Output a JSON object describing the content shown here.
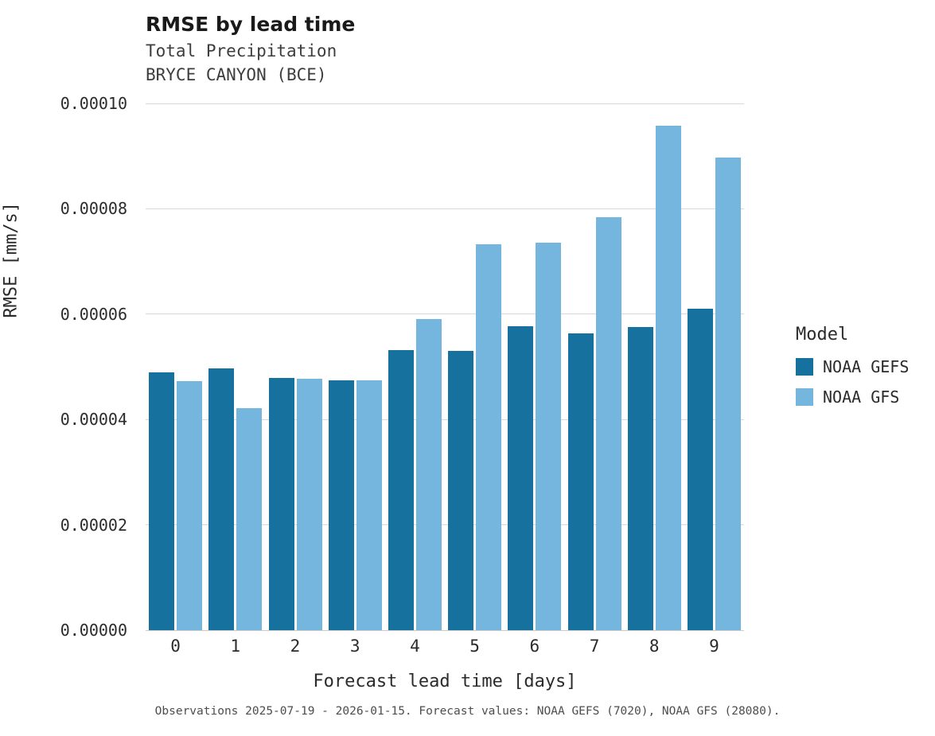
{
  "header": {
    "title": "RMSE by lead time",
    "subtitle1": "Total Precipitation",
    "subtitle2": "BRYCE CANYON (BCE)"
  },
  "caption": "Observations 2025-07-19 - 2026-01-15. Forecast values: NOAA GEFS (7020), NOAA GFS (28080).",
  "legend": {
    "title": "Model",
    "entries": [
      {
        "label": "NOAA GEFS",
        "color": "#17719f"
      },
      {
        "label": "NOAA GFS",
        "color": "#74b6dd"
      }
    ]
  },
  "chart_data": {
    "type": "bar",
    "title": "RMSE by lead time",
    "subtitle": "Total Precipitation — BRYCE CANYON (BCE)",
    "xlabel": "Forecast lead time [days]",
    "ylabel": "RMSE [mm/s]",
    "categories": [
      "0",
      "1",
      "2",
      "3",
      "4",
      "5",
      "6",
      "7",
      "8",
      "9"
    ],
    "series": [
      {
        "name": "NOAA GEFS",
        "color": "#17719f",
        "values": [
          4.89e-05,
          4.97e-05,
          4.79e-05,
          4.74e-05,
          5.32e-05,
          5.3e-05,
          5.77e-05,
          5.63e-05,
          5.75e-05,
          6.1e-05
        ]
      },
      {
        "name": "NOAA GFS",
        "color": "#74b6dd",
        "values": [
          4.73e-05,
          4.22e-05,
          4.78e-05,
          4.74e-05,
          5.9e-05,
          7.33e-05,
          7.35e-05,
          7.84e-05,
          9.58e-05,
          8.97e-05
        ]
      }
    ],
    "ylim": [
      0,
      0.0001
    ],
    "yticks": [
      0,
      2e-05,
      4e-05,
      6e-05,
      8e-05,
      0.0001
    ],
    "ytick_labels": [
      "0.00000",
      "0.00002",
      "0.00004",
      "0.00006",
      "0.00008",
      "0.00010"
    ],
    "grid": true,
    "legend_position": "right",
    "legend_title": "Model"
  }
}
